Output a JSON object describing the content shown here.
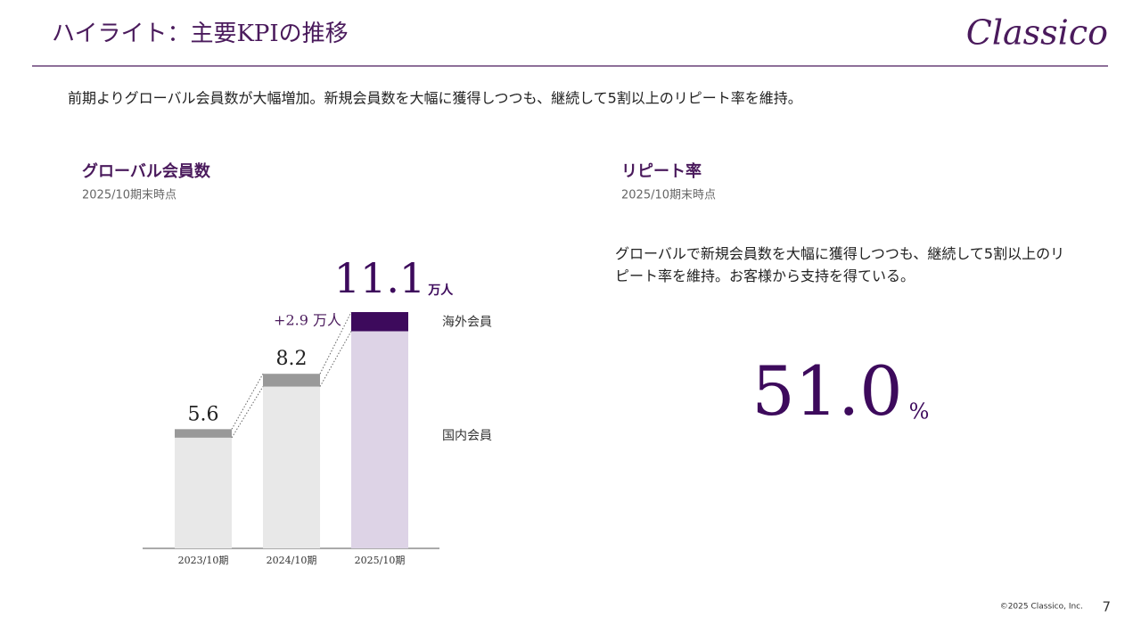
{
  "header": {
    "title": "ハイライト：主要KPIの推移",
    "logo": "Classico"
  },
  "lead": "前期よりグローバル会員数が大幅増加。新規会員数を大幅に獲得しつつも、継続して5割以上のリピート率を維持。",
  "members": {
    "title": "グローバル会員数",
    "subtitle": "2025/10期末時点"
  },
  "chart_data": {
    "type": "stacked-bar",
    "categories": [
      "2023/10期",
      "2024/10期",
      "2025/10期"
    ],
    "series": [
      {
        "name": "国内会員",
        "colors": [
          "#e8e8e8",
          "#e8e8e8",
          "#ddd3e6"
        ],
        "values": [
          5.2,
          7.6,
          10.2
        ]
      },
      {
        "name": "海外会員",
        "colors": [
          "#999999",
          "#999999",
          "#3d0a5c"
        ],
        "values": [
          0.4,
          0.6,
          0.9
        ]
      }
    ],
    "totals": [
      5.6,
      8.2,
      11.1
    ],
    "unit": "万人",
    "annotation": "+2.9 万人"
  },
  "repeat_rate": {
    "title": "リピート率",
    "subtitle": "2025/10期末時点",
    "description": "グローバルで新規会員数を大幅に獲得しつつも、継続して5割以上のリピート率を維持。お客様から支持を得ている。",
    "value": "51.0",
    "unit": "%"
  },
  "footer": {
    "copyright": "©2025 Classico, Inc.",
    "page": "7"
  }
}
